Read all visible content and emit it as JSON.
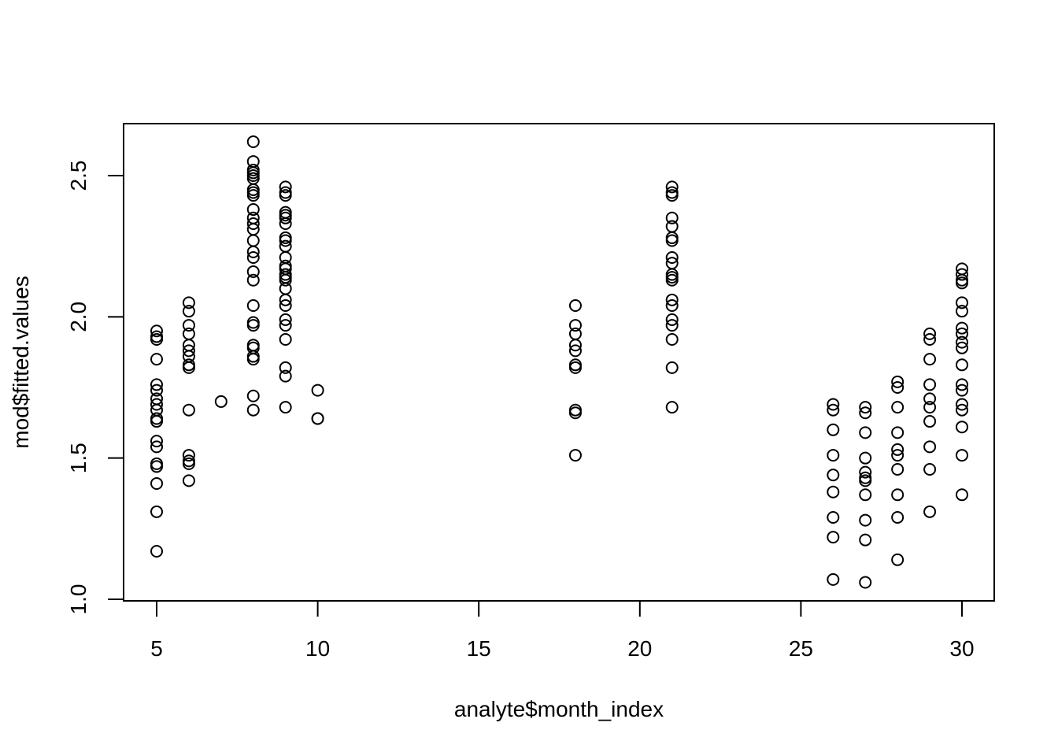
{
  "chart_data": {
    "type": "scatter",
    "title": "",
    "xlabel": "analyte$month_index",
    "ylabel": "mod$fitted.values",
    "xlim": [
      4,
      31
    ],
    "ylim": [
      0.99,
      2.68
    ],
    "x_ticks": [
      5,
      10,
      15,
      20,
      25,
      30
    ],
    "y_ticks": [
      1.0,
      1.5,
      2.0,
      2.5
    ],
    "x_tick_labels": [
      "5",
      "10",
      "15",
      "20",
      "25",
      "30"
    ],
    "y_tick_labels": [
      "1.0",
      "1.5",
      "2.0",
      "2.5"
    ],
    "grid": false,
    "legend": "none",
    "marker": "open-circle",
    "colors": {
      "marker": "#000000",
      "axes": "#000000",
      "background": "#ffffff"
    },
    "series": [
      {
        "points": [
          [
            5,
            1.95
          ],
          [
            5,
            1.93
          ],
          [
            5,
            1.92
          ],
          [
            5,
            1.85
          ],
          [
            5,
            1.76
          ],
          [
            5,
            1.74
          ],
          [
            5,
            1.71
          ],
          [
            5,
            1.69
          ],
          [
            5,
            1.67
          ],
          [
            5,
            1.64
          ],
          [
            5,
            1.63
          ],
          [
            5,
            1.56
          ],
          [
            5,
            1.54
          ],
          [
            5,
            1.48
          ],
          [
            5,
            1.47
          ],
          [
            5,
            1.41
          ],
          [
            5,
            1.31
          ],
          [
            5,
            1.17
          ],
          [
            6,
            2.05
          ],
          [
            6,
            2.02
          ],
          [
            6,
            1.97
          ],
          [
            6,
            1.94
          ],
          [
            6,
            1.9
          ],
          [
            6,
            1.88
          ],
          [
            6,
            1.86
          ],
          [
            6,
            1.83
          ],
          [
            6,
            1.82
          ],
          [
            6,
            1.67
          ],
          [
            6,
            1.51
          ],
          [
            6,
            1.49
          ],
          [
            6,
            1.48
          ],
          [
            6,
            1.42
          ],
          [
            7,
            1.7
          ],
          [
            8,
            2.62
          ],
          [
            8,
            2.55
          ],
          [
            8,
            2.52
          ],
          [
            8,
            2.51
          ],
          [
            8,
            2.5
          ],
          [
            8,
            2.49
          ],
          [
            8,
            2.45
          ],
          [
            8,
            2.44
          ],
          [
            8,
            2.43
          ],
          [
            8,
            2.38
          ],
          [
            8,
            2.35
          ],
          [
            8,
            2.33
          ],
          [
            8,
            2.31
          ],
          [
            8,
            2.27
          ],
          [
            8,
            2.23
          ],
          [
            8,
            2.21
          ],
          [
            8,
            2.16
          ],
          [
            8,
            2.13
          ],
          [
            8,
            2.04
          ],
          [
            8,
            1.98
          ],
          [
            8,
            1.97
          ],
          [
            8,
            1.9
          ],
          [
            8,
            1.89
          ],
          [
            8,
            1.86
          ],
          [
            8,
            1.85
          ],
          [
            8,
            1.72
          ],
          [
            8,
            1.67
          ],
          [
            9,
            2.46
          ],
          [
            9,
            2.44
          ],
          [
            9,
            2.43
          ],
          [
            9,
            2.37
          ],
          [
            9,
            2.36
          ],
          [
            9,
            2.35
          ],
          [
            9,
            2.33
          ],
          [
            9,
            2.28
          ],
          [
            9,
            2.27
          ],
          [
            9,
            2.25
          ],
          [
            9,
            2.21
          ],
          [
            9,
            2.18
          ],
          [
            9,
            2.17
          ],
          [
            9,
            2.15
          ],
          [
            9,
            2.14
          ],
          [
            9,
            2.13
          ],
          [
            9,
            2.1
          ],
          [
            9,
            2.06
          ],
          [
            9,
            2.04
          ],
          [
            9,
            1.99
          ],
          [
            9,
            1.97
          ],
          [
            9,
            1.92
          ],
          [
            9,
            1.82
          ],
          [
            9,
            1.79
          ],
          [
            9,
            1.68
          ],
          [
            10,
            1.74
          ],
          [
            10,
            1.64
          ],
          [
            10,
            1.64
          ],
          [
            18,
            2.04
          ],
          [
            18,
            1.97
          ],
          [
            18,
            1.94
          ],
          [
            18,
            1.9
          ],
          [
            18,
            1.88
          ],
          [
            18,
            1.83
          ],
          [
            18,
            1.82
          ],
          [
            18,
            1.67
          ],
          [
            18,
            1.66
          ],
          [
            18,
            1.51
          ],
          [
            21,
            2.46
          ],
          [
            21,
            2.44
          ],
          [
            21,
            2.43
          ],
          [
            21,
            2.35
          ],
          [
            21,
            2.32
          ],
          [
            21,
            2.28
          ],
          [
            21,
            2.27
          ],
          [
            21,
            2.21
          ],
          [
            21,
            2.19
          ],
          [
            21,
            2.15
          ],
          [
            21,
            2.14
          ],
          [
            21,
            2.13
          ],
          [
            21,
            2.06
          ],
          [
            21,
            2.04
          ],
          [
            21,
            1.99
          ],
          [
            21,
            1.97
          ],
          [
            21,
            1.92
          ],
          [
            21,
            1.82
          ],
          [
            21,
            1.68
          ],
          [
            26,
            1.69
          ],
          [
            26,
            1.67
          ],
          [
            26,
            1.6
          ],
          [
            26,
            1.51
          ],
          [
            26,
            1.44
          ],
          [
            26,
            1.38
          ],
          [
            26,
            1.29
          ],
          [
            26,
            1.22
          ],
          [
            26,
            1.07
          ],
          [
            27,
            1.68
          ],
          [
            27,
            1.66
          ],
          [
            27,
            1.59
          ],
          [
            27,
            1.5
          ],
          [
            27,
            1.45
          ],
          [
            27,
            1.43
          ],
          [
            27,
            1.42
          ],
          [
            27,
            1.37
          ],
          [
            27,
            1.28
          ],
          [
            27,
            1.21
          ],
          [
            27,
            1.06
          ],
          [
            28,
            1.77
          ],
          [
            28,
            1.75
          ],
          [
            28,
            1.68
          ],
          [
            28,
            1.59
          ],
          [
            28,
            1.53
          ],
          [
            28,
            1.51
          ],
          [
            28,
            1.46
          ],
          [
            28,
            1.37
          ],
          [
            28,
            1.29
          ],
          [
            28,
            1.14
          ],
          [
            29,
            1.94
          ],
          [
            29,
            1.92
          ],
          [
            29,
            1.85
          ],
          [
            29,
            1.76
          ],
          [
            29,
            1.71
          ],
          [
            29,
            1.68
          ],
          [
            29,
            1.63
          ],
          [
            29,
            1.54
          ],
          [
            29,
            1.46
          ],
          [
            29,
            1.31
          ],
          [
            30,
            2.17
          ],
          [
            30,
            2.15
          ],
          [
            30,
            2.13
          ],
          [
            30,
            2.12
          ],
          [
            30,
            2.05
          ],
          [
            30,
            2.02
          ],
          [
            30,
            1.96
          ],
          [
            30,
            1.94
          ],
          [
            30,
            1.91
          ],
          [
            30,
            1.89
          ],
          [
            30,
            1.83
          ],
          [
            30,
            1.76
          ],
          [
            30,
            1.74
          ],
          [
            30,
            1.69
          ],
          [
            30,
            1.67
          ],
          [
            30,
            1.61
          ],
          [
            30,
            1.51
          ],
          [
            30,
            1.37
          ]
        ]
      }
    ]
  }
}
